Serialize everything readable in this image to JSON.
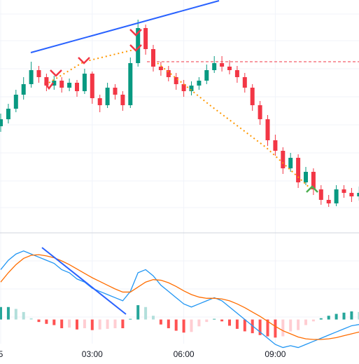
{
  "chart_data": {
    "type": "candlestick",
    "categories": [
      "5",
      null,
      null,
      null,
      null,
      null,
      null,
      null,
      null,
      null,
      null,
      null,
      "03:00",
      null,
      null,
      null,
      null,
      null,
      null,
      null,
      null,
      null,
      null,
      null,
      "06:00",
      null,
      null,
      null,
      null,
      null,
      null,
      null,
      null,
      null,
      null,
      null,
      "09:00",
      null,
      null,
      null,
      null,
      null,
      null,
      null,
      null,
      null,
      null,
      null
    ],
    "open": [
      120,
      130,
      145,
      165,
      180,
      200,
      190,
      178,
      185,
      175,
      182,
      170,
      195,
      160,
      150,
      175,
      165,
      150,
      210,
      260,
      230,
      205,
      200,
      190,
      180,
      170,
      178,
      185,
      200,
      210,
      205,
      200,
      190,
      175,
      150,
      130,
      100,
      85,
      60,
      75,
      40,
      55,
      30,
      15,
      10,
      30,
      25,
      20
    ],
    "high": [
      138,
      152,
      172,
      190,
      212,
      206,
      195,
      192,
      190,
      188,
      186,
      202,
      198,
      165,
      182,
      180,
      170,
      218,
      272,
      265,
      236,
      212,
      206,
      196,
      186,
      184,
      190,
      208,
      220,
      220,
      214,
      206,
      196,
      180,
      156,
      136,
      108,
      90,
      82,
      80,
      62,
      60,
      36,
      22,
      36,
      36,
      32,
      34
    ],
    "low": [
      112,
      124,
      140,
      158,
      175,
      182,
      170,
      172,
      168,
      170,
      162,
      166,
      152,
      140,
      146,
      158,
      142,
      146,
      205,
      222,
      198,
      192,
      184,
      172,
      162,
      164,
      172,
      180,
      196,
      198,
      194,
      182,
      168,
      142,
      122,
      92,
      78,
      52,
      55,
      32,
      36,
      22,
      8,
      5,
      6,
      18,
      12,
      14
    ],
    "close": [
      130,
      145,
      165,
      180,
      200,
      190,
      178,
      185,
      175,
      182,
      170,
      195,
      160,
      150,
      175,
      165,
      150,
      210,
      260,
      230,
      205,
      200,
      190,
      180,
      170,
      178,
      185,
      200,
      210,
      205,
      200,
      190,
      175,
      150,
      130,
      100,
      85,
      60,
      75,
      40,
      55,
      30,
      15,
      10,
      30,
      25,
      20,
      25
    ],
    "up_color": "#089981",
    "down_color": "#f23645",
    "ylim": [
      0,
      300
    ],
    "macd": {
      "ylim": [
        -50,
        130
      ],
      "series": [
        {
          "color": "#2196f3",
          "values": [
            80,
            95,
            105,
            110,
            105,
            100,
            95,
            90,
            80,
            75,
            65,
            60,
            50,
            45,
            40,
            35,
            30,
            45,
            75,
            80,
            70,
            55,
            45,
            35,
            25,
            20,
            25,
            30,
            35,
            30,
            20,
            10,
            0,
            -10,
            -20,
            -30,
            -40,
            -45,
            -42,
            -45,
            -40,
            -35,
            -30,
            -25,
            -20,
            -15,
            -10,
            -8
          ]
        },
        {
          "color": "#ff6d00",
          "values": [
            60,
            75,
            88,
            98,
            103,
            104,
            102,
            99,
            94,
            88,
            81,
            74,
            67,
            61,
            55,
            49,
            44,
            44,
            52,
            60,
            64,
            63,
            59,
            53,
            46,
            40,
            36,
            34,
            34,
            33,
            30,
            25,
            19,
            12,
            5,
            -3,
            -11,
            -18,
            -23,
            -28,
            -31,
            -32,
            -32,
            -31,
            -29,
            -26,
            -23,
            -20
          ]
        }
      ],
      "histogram": [
        20,
        20,
        17,
        12,
        2,
        -4,
        -7,
        -9,
        -14,
        -13,
        -16,
        -14,
        -17,
        -16,
        -15,
        -14,
        -14,
        1,
        23,
        20,
        6,
        -8,
        -14,
        -18,
        -21,
        -20,
        -11,
        -4,
        1,
        -3,
        -10,
        -15,
        -19,
        -22,
        -25,
        -27,
        -29,
        -27,
        -19,
        -17,
        -9,
        -3,
        2,
        6,
        9,
        11,
        13,
        12
      ],
      "histogram_colors": [
        "#26a69a",
        "#b2dfdb",
        "#ff5252",
        "#ffcdd2"
      ]
    }
  }
}
